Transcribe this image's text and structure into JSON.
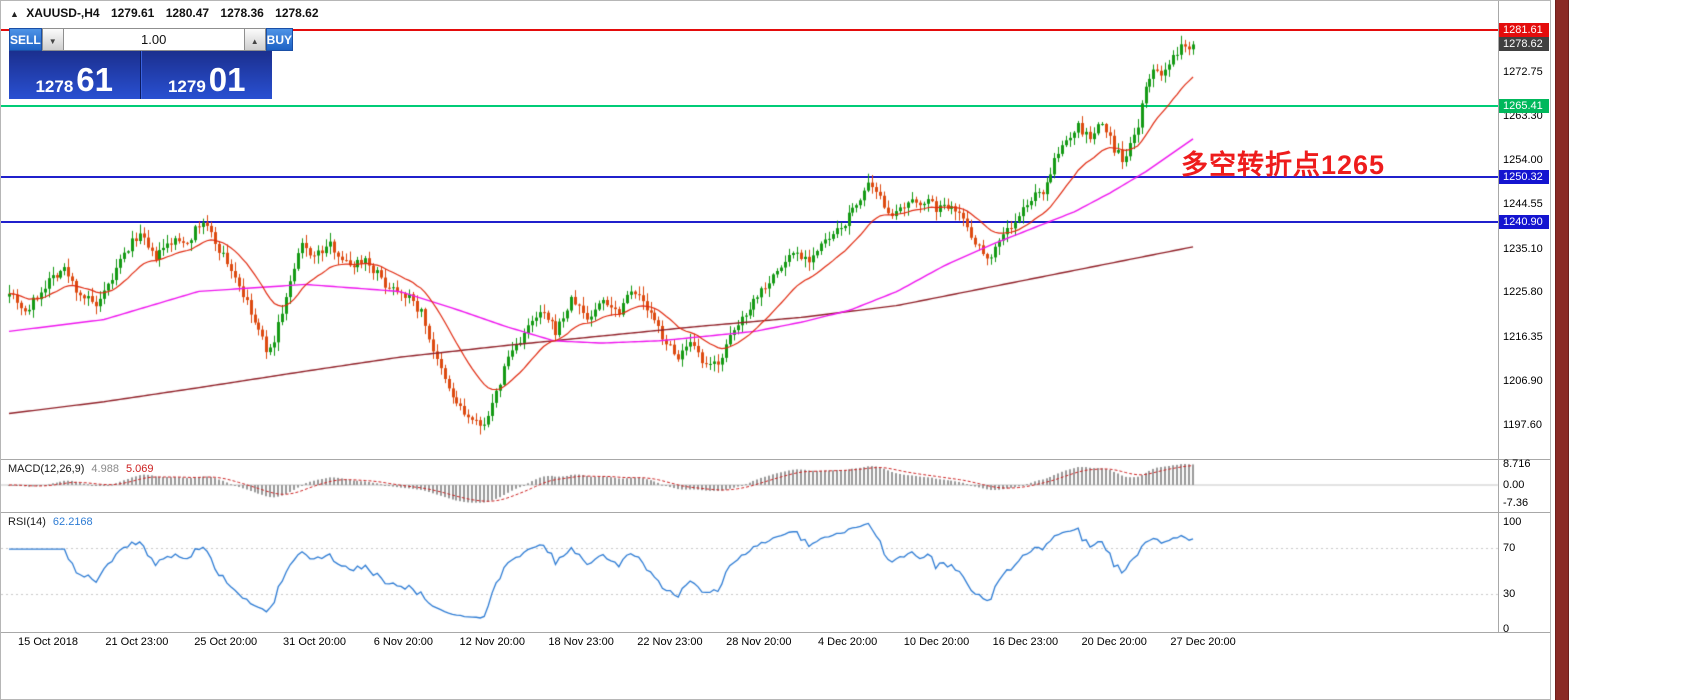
{
  "window": {
    "symbol_title": "XAUUSD-,H4",
    "ohlc": {
      "open": "1279.61",
      "high": "1280.47",
      "low": "1278.36",
      "close": "1278.62"
    }
  },
  "icons": {
    "chart_symbol": "▲",
    "spin_up": "▲",
    "spin_down": "▼"
  },
  "one_click": {
    "sell_label": "SELL",
    "buy_label": "BUY",
    "volume": "1.00",
    "sell_price_big": "1278",
    "sell_price_points": "61",
    "buy_price_big": "1279",
    "buy_price_points": "01"
  },
  "annotation": {
    "text": "多空转折点1265",
    "color": "#ee1c1c"
  },
  "chart_data": {
    "type": "candlestick",
    "symbol": "XAUUSD-",
    "timeframe": "H4",
    "main": {
      "price_range": [
        1190.95,
        1282.55
      ],
      "axis_ticks": [
        "1272.75",
        "1263.30",
        "1254.00",
        "1244.55",
        "1235.10",
        "1225.80",
        "1216.35",
        "1206.90",
        "1197.60"
      ],
      "badges": [
        {
          "price": 1281.61,
          "label": "1281.61",
          "bg": "#e40c0c"
        },
        {
          "price": 1278.62,
          "label": "1278.62",
          "bg": "#404040"
        },
        {
          "price": 1265.41,
          "label": "1265.41",
          "bg": "#00b85c"
        },
        {
          "price": 1250.32,
          "label": "1250.32",
          "bg": "#1414d0"
        },
        {
          "price": 1240.9,
          "label": "1240.90",
          "bg": "#1414d0"
        }
      ],
      "levels": [
        {
          "price": 1281.61,
          "color": "#e40c0c",
          "thickness": 2,
          "name": "resistance-line-1281"
        },
        {
          "price": 1265.41,
          "color": "#00cc77",
          "thickness": 2,
          "name": "pivot-line-1265"
        },
        {
          "price": 1250.32,
          "color": "#2020cc",
          "thickness": 2,
          "name": "support-line-1250"
        },
        {
          "price": 1240.9,
          "color": "#2020cc",
          "thickness": 2,
          "name": "support-line-1240"
        }
      ],
      "current_bid": 1278.62,
      "candle_count": 300,
      "colors": {
        "up": "#149a14",
        "down": "#dd4a10",
        "ma_fast": "#e02a10",
        "ma_mid": "#ee14ee",
        "ma_slow": "#902028"
      },
      "close_path": [
        [
          0.0,
          1226.5
        ],
        [
          0.014,
          1221.5
        ],
        [
          0.033,
          1228.5
        ],
        [
          0.046,
          1231.0
        ],
        [
          0.058,
          1226.0
        ],
        [
          0.075,
          1222.5
        ],
        [
          0.095,
          1233.0
        ],
        [
          0.109,
          1238.5
        ],
        [
          0.122,
          1233.0
        ],
        [
          0.137,
          1236.5
        ],
        [
          0.151,
          1237.0
        ],
        [
          0.164,
          1241.0
        ],
        [
          0.174,
          1236.5
        ],
        [
          0.191,
          1229.0
        ],
        [
          0.206,
          1220.0
        ],
        [
          0.22,
          1212.5
        ],
        [
          0.231,
          1222.0
        ],
        [
          0.247,
          1236.0
        ],
        [
          0.258,
          1233.5
        ],
        [
          0.272,
          1236.0
        ],
        [
          0.286,
          1231.5
        ],
        [
          0.301,
          1233.0
        ],
        [
          0.318,
          1227.5
        ],
        [
          0.333,
          1226.0
        ],
        [
          0.348,
          1221.5
        ],
        [
          0.361,
          1211.0
        ],
        [
          0.373,
          1204.0
        ],
        [
          0.386,
          1199.5
        ],
        [
          0.398,
          1197.0
        ],
        [
          0.409,
          1202.0
        ],
        [
          0.421,
          1212.0
        ],
        [
          0.436,
          1217.5
        ],
        [
          0.449,
          1221.5
        ],
        [
          0.462,
          1217.5
        ],
        [
          0.476,
          1224.5
        ],
        [
          0.489,
          1220.0
        ],
        [
          0.502,
          1224.5
        ],
        [
          0.514,
          1221.5
        ],
        [
          0.525,
          1227.0
        ],
        [
          0.538,
          1222.5
        ],
        [
          0.551,
          1217.0
        ],
        [
          0.563,
          1212.0
        ],
        [
          0.576,
          1214.5
        ],
        [
          0.589,
          1209.5
        ],
        [
          0.6,
          1211.5
        ],
        [
          0.611,
          1217.0
        ],
        [
          0.624,
          1222.5
        ],
        [
          0.637,
          1227.0
        ],
        [
          0.65,
          1230.5
        ],
        [
          0.662,
          1234.5
        ],
        [
          0.676,
          1233.0
        ],
        [
          0.689,
          1236.5
        ],
        [
          0.701,
          1239.0
        ],
        [
          0.713,
          1243.5
        ],
        [
          0.725,
          1248.5
        ],
        [
          0.736,
          1245.5
        ],
        [
          0.748,
          1242.0
        ],
        [
          0.76,
          1244.5
        ],
        [
          0.772,
          1245.5
        ],
        [
          0.785,
          1243.5
        ],
        [
          0.797,
          1245.0
        ],
        [
          0.81,
          1239.5
        ],
        [
          0.821,
          1234.5
        ],
        [
          0.829,
          1233.5
        ],
        [
          0.839,
          1238.5
        ],
        [
          0.85,
          1240.5
        ],
        [
          0.861,
          1245.5
        ],
        [
          0.872,
          1247.0
        ],
        [
          0.882,
          1253.0
        ],
        [
          0.893,
          1258.5
        ],
        [
          0.903,
          1261.0
        ],
        [
          0.913,
          1258.5
        ],
        [
          0.923,
          1262.0
        ],
        [
          0.933,
          1256.5
        ],
        [
          0.942,
          1253.5
        ],
        [
          0.953,
          1261.5
        ],
        [
          0.961,
          1270.0
        ],
        [
          0.968,
          1274.5
        ],
        [
          0.975,
          1271.5
        ],
        [
          0.983,
          1275.5
        ],
        [
          0.991,
          1278.5
        ],
        [
          1.0,
          1278.62
        ]
      ],
      "ma_mid_path": [
        [
          0,
          1217.5
        ],
        [
          0.08,
          1220
        ],
        [
          0.16,
          1226
        ],
        [
          0.25,
          1227.5
        ],
        [
          0.33,
          1226
        ],
        [
          0.38,
          1222
        ],
        [
          0.42,
          1218.5
        ],
        [
          0.46,
          1215.5
        ],
        [
          0.5,
          1215
        ],
        [
          0.55,
          1215.5
        ],
        [
          0.59,
          1216.5
        ],
        [
          0.63,
          1217.5
        ],
        [
          0.67,
          1219.5
        ],
        [
          0.71,
          1222
        ],
        [
          0.75,
          1226
        ],
        [
          0.79,
          1231.5
        ],
        [
          0.83,
          1236
        ],
        [
          0.87,
          1240
        ],
        [
          0.9,
          1243
        ],
        [
          0.93,
          1247
        ],
        [
          0.96,
          1251.5
        ],
        [
          1.0,
          1258.5
        ]
      ],
      "ma_slow_path": [
        [
          0,
          1200
        ],
        [
          0.08,
          1202.5
        ],
        [
          0.16,
          1205.5
        ],
        [
          0.25,
          1209
        ],
        [
          0.33,
          1212
        ],
        [
          0.42,
          1214.5
        ],
        [
          0.5,
          1216.5
        ],
        [
          0.58,
          1218.5
        ],
        [
          0.67,
          1220.5
        ],
        [
          0.75,
          1223
        ],
        [
          0.83,
          1227
        ],
        [
          0.9,
          1230.5
        ],
        [
          1.0,
          1235.5
        ]
      ]
    },
    "macd": {
      "label": "MACD(12,26,9)",
      "value_main": "4.988",
      "value_signal": "5.069",
      "axis": [
        "8.716",
        "0.00",
        "-7.36"
      ],
      "axis_max": 8.716,
      "axis_min": -7.36,
      "hist_color": "#9a9a9a",
      "signal_color": "#cc2222",
      "value_main_color": "#8a8a8a"
    },
    "rsi": {
      "label": "RSI(14)",
      "value": "62.2168",
      "axis": [
        "100",
        "70",
        "30",
        "0"
      ],
      "levels": [
        70,
        30
      ],
      "line_color": "#2e7cd4",
      "level_color": "#c8c8c8"
    },
    "time_axis": [
      "15 Oct 2018",
      "21 Oct 23:00",
      "25 Oct 20:00",
      "31 Oct 20:00",
      "6 Nov 20:00",
      "12 Nov 20:00",
      "18 Nov 23:00",
      "22 Nov 23:00",
      "28 Nov 20:00",
      "4 Dec 20:00",
      "10 Dec 20:00",
      "16 Dec 23:00",
      "20 Dec 20:00",
      "27 Dec 20:00"
    ]
  }
}
